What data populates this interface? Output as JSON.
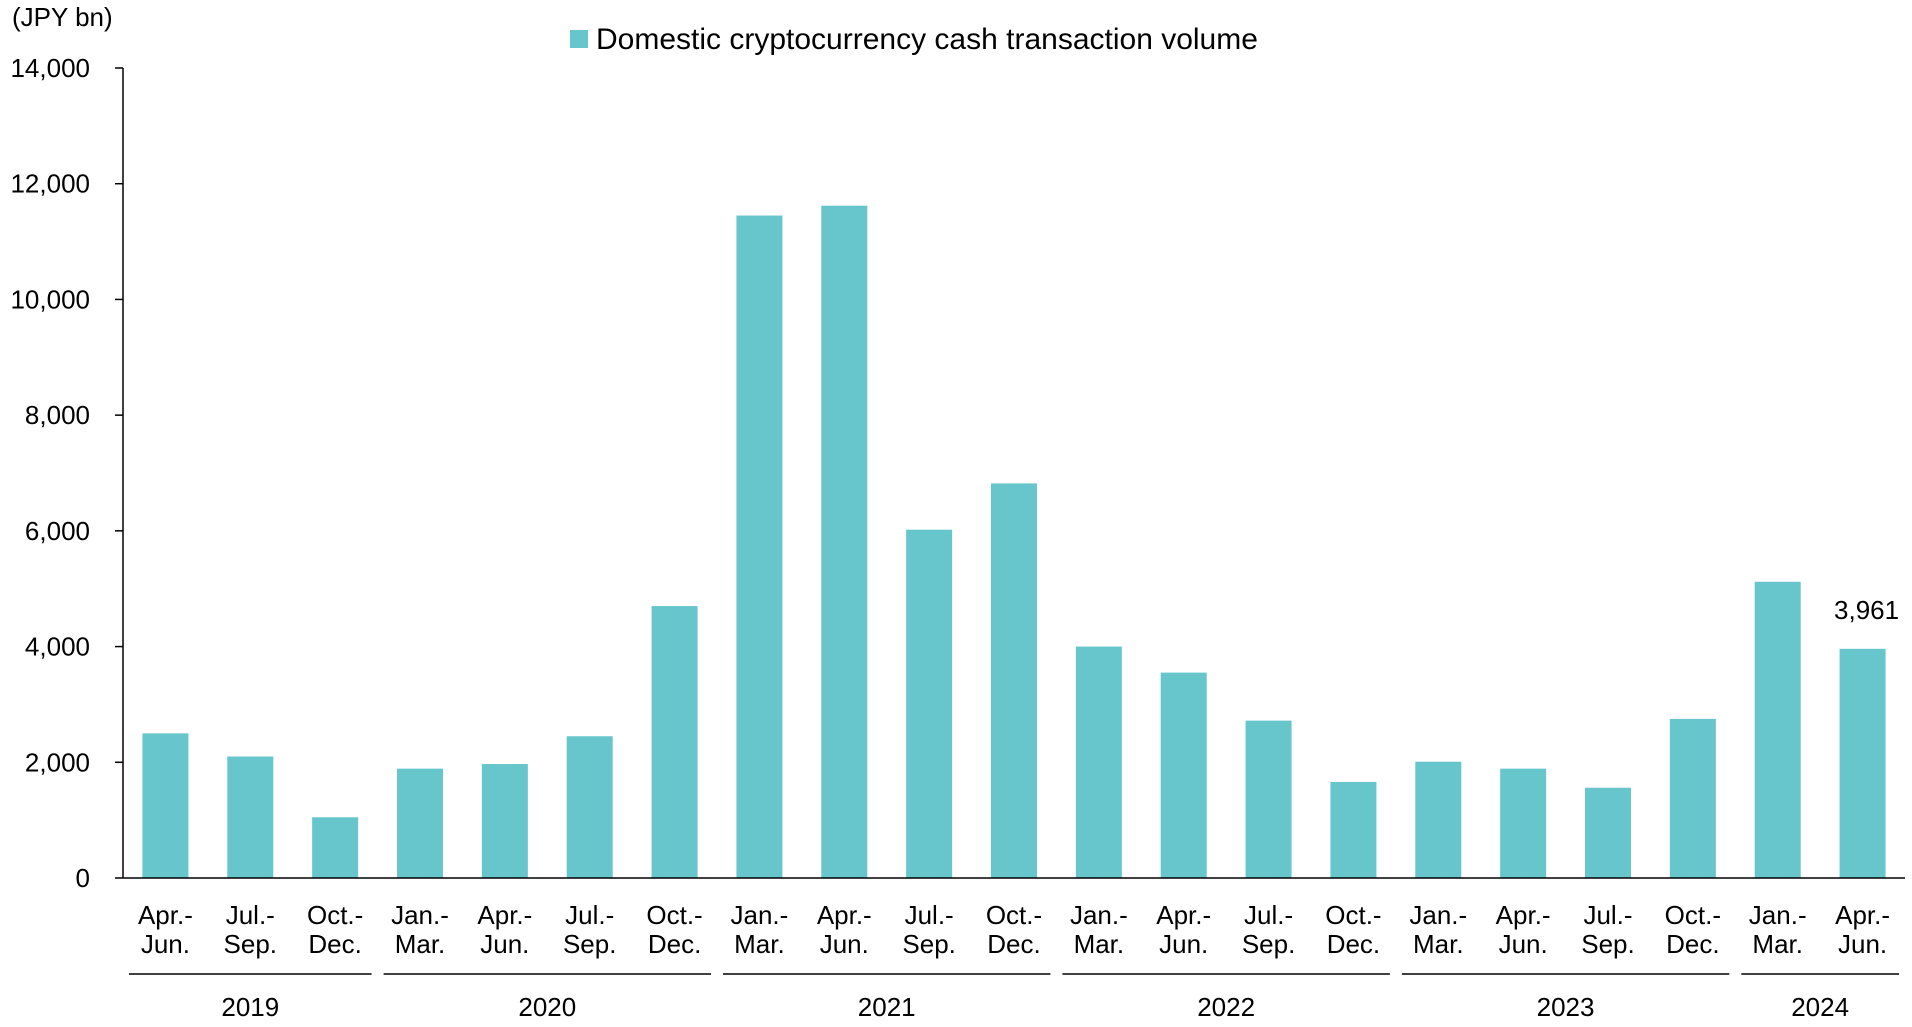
{
  "chart_data": {
    "type": "bar",
    "unit_label": "(JPY bn)",
    "ylim": [
      0,
      14000
    ],
    "yticks": [
      0,
      2000,
      4000,
      6000,
      8000,
      10000,
      12000,
      14000
    ],
    "ytick_labels": [
      "0",
      "2,000",
      "4,000",
      "6,000",
      "8,000",
      "10,000",
      "12,000",
      "14,000"
    ],
    "grid": false,
    "legend_position": "top-center",
    "categories": [
      [
        "Apr.-",
        "Jun."
      ],
      [
        "Jul.-",
        "Sep."
      ],
      [
        "Oct.-",
        "Dec."
      ],
      [
        "Jan.-",
        "Mar."
      ],
      [
        "Apr.-",
        "Jun."
      ],
      [
        "Jul.-",
        "Sep."
      ],
      [
        "Oct.-",
        "Dec."
      ],
      [
        "Jan.-",
        "Mar."
      ],
      [
        "Apr.-",
        "Jun."
      ],
      [
        "Jul.-",
        "Sep."
      ],
      [
        "Oct.-",
        "Dec."
      ],
      [
        "Jan.-",
        "Mar."
      ],
      [
        "Apr.-",
        "Jun."
      ],
      [
        "Jul.-",
        "Sep."
      ],
      [
        "Oct.-",
        "Dec."
      ],
      [
        "Jan.-",
        "Mar."
      ],
      [
        "Apr.-",
        "Jun."
      ],
      [
        "Jul.-",
        "Sep."
      ],
      [
        "Oct.-",
        "Dec."
      ],
      [
        "Jan.-",
        "Mar."
      ],
      [
        "Apr.-",
        "Jun."
      ]
    ],
    "year_groups": [
      {
        "label": "2019",
        "start": 0,
        "end": 2
      },
      {
        "label": "2020",
        "start": 3,
        "end": 6
      },
      {
        "label": "2021",
        "start": 7,
        "end": 10
      },
      {
        "label": "2022",
        "start": 11,
        "end": 14
      },
      {
        "label": "2023",
        "start": 15,
        "end": 18
      },
      {
        "label": "2024",
        "start": 19,
        "end": 20
      }
    ],
    "series": [
      {
        "name": "Domestic cryptocurrency cash transaction volume",
        "color": "#66C6CC",
        "values": [
          2500,
          2100,
          1050,
          1890,
          1970,
          2450,
          4700,
          11450,
          11620,
          6020,
          6820,
          4000,
          3550,
          2720,
          1660,
          2010,
          1890,
          1560,
          2750,
          5120,
          3961
        ]
      }
    ],
    "annotations": [
      {
        "index": 20,
        "text": "3,961"
      }
    ]
  }
}
